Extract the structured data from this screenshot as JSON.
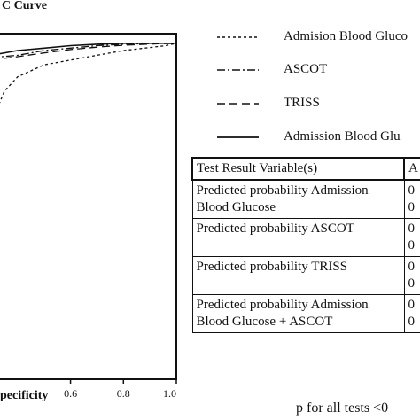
{
  "chart_data": {
    "type": "line",
    "title": "C Curve",
    "xlabel": "pecificity",
    "xlim": [
      0.3,
      1.0
    ],
    "ylim": [
      0.3,
      1.02
    ],
    "x_ticks": [
      {
        "value": 0.6,
        "label": "0.6"
      },
      {
        "value": 0.8,
        "label": "0.8"
      },
      {
        "value": 1.0,
        "label": "1.0"
      }
    ],
    "legend_position": "right",
    "series": [
      {
        "name": "Admision Blood Gluco",
        "style": "dotted",
        "points": [
          [
            0.3,
            0.82
          ],
          [
            0.32,
            0.86
          ],
          [
            0.35,
            0.9
          ],
          [
            0.4,
            0.93
          ],
          [
            0.5,
            0.955
          ],
          [
            0.6,
            0.965
          ],
          [
            0.7,
            0.975
          ],
          [
            0.8,
            0.985
          ],
          [
            0.88,
            0.99
          ],
          [
            0.96,
            0.995
          ],
          [
            1.0,
            1.0
          ]
        ]
      },
      {
        "name": "ASCOT",
        "style": "dash-dot",
        "points": [
          [
            0.3,
            0.97
          ],
          [
            0.4,
            0.975
          ],
          [
            0.5,
            0.985
          ],
          [
            0.6,
            0.99
          ],
          [
            0.7,
            0.995
          ],
          [
            0.8,
            0.998
          ],
          [
            0.95,
            1.0
          ],
          [
            1.0,
            1.0
          ]
        ]
      },
      {
        "name": "TRISS",
        "style": "dashed",
        "points": [
          [
            0.3,
            0.965
          ],
          [
            0.4,
            0.972
          ],
          [
            0.5,
            0.98
          ],
          [
            0.6,
            0.987
          ],
          [
            0.7,
            0.992
          ],
          [
            0.8,
            0.996
          ],
          [
            0.93,
            0.999
          ],
          [
            1.0,
            1.0
          ]
        ]
      },
      {
        "name": "Admission Blood Glu",
        "style": "solid",
        "points": [
          [
            0.3,
            0.975
          ],
          [
            0.4,
            0.985
          ],
          [
            0.5,
            0.99
          ],
          [
            0.6,
            0.995
          ],
          [
            0.7,
            0.998
          ],
          [
            0.8,
            1.0
          ],
          [
            1.0,
            1.0
          ]
        ]
      }
    ]
  },
  "table": {
    "header": [
      "Test Result Variable(s)",
      "A"
    ],
    "rows": [
      {
        "label": "Predicted probability Admission Blood Glucose",
        "value_lines": [
          "0",
          "0"
        ]
      },
      {
        "label": "Predicted probability ASCOT",
        "value_lines": [
          "0",
          "0"
        ]
      },
      {
        "label": "Predicted probability TRISS",
        "value_lines": [
          "0",
          "0"
        ]
      },
      {
        "label": "Predicted probability Admission Blood Glucose + ASCOT",
        "value_lines": [
          "0",
          "0"
        ]
      }
    ]
  },
  "footnote": "p for all tests <0"
}
